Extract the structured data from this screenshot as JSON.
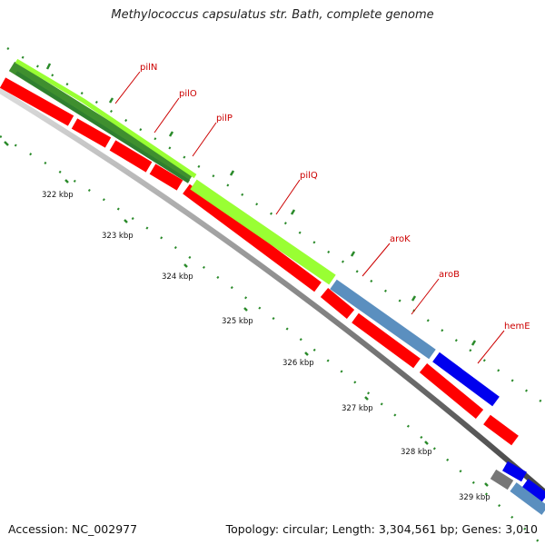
{
  "title": "Methylococcus capsulatus str. Bath, complete genome",
  "accession": "Accession: NC_002977",
  "summary": "Topology: circular; Length: 3,304,561 bp; Genes: 3,010",
  "colors": {
    "backbone": "#8a8a8a",
    "cds": "#ff0000",
    "pil_feature": "#99ff33",
    "pil_dark": "#3f8f2f",
    "aro_feature": "#5b8fbf",
    "hem_feature": "#0000ee",
    "gray_feature": "#777777",
    "tick": "#2a8a2a",
    "label": "#cc0000",
    "ruler_text": "#111111"
  },
  "ruler_labels": [
    "322 kbp",
    "323 kbp",
    "324 kbp",
    "325 kbp",
    "326 kbp",
    "327 kbp",
    "328 kbp",
    "329 kbp"
  ],
  "gene_labels": [
    "pilN",
    "pilO",
    "pilP",
    "pilQ",
    "aroK",
    "aroB",
    "hemE"
  ]
}
